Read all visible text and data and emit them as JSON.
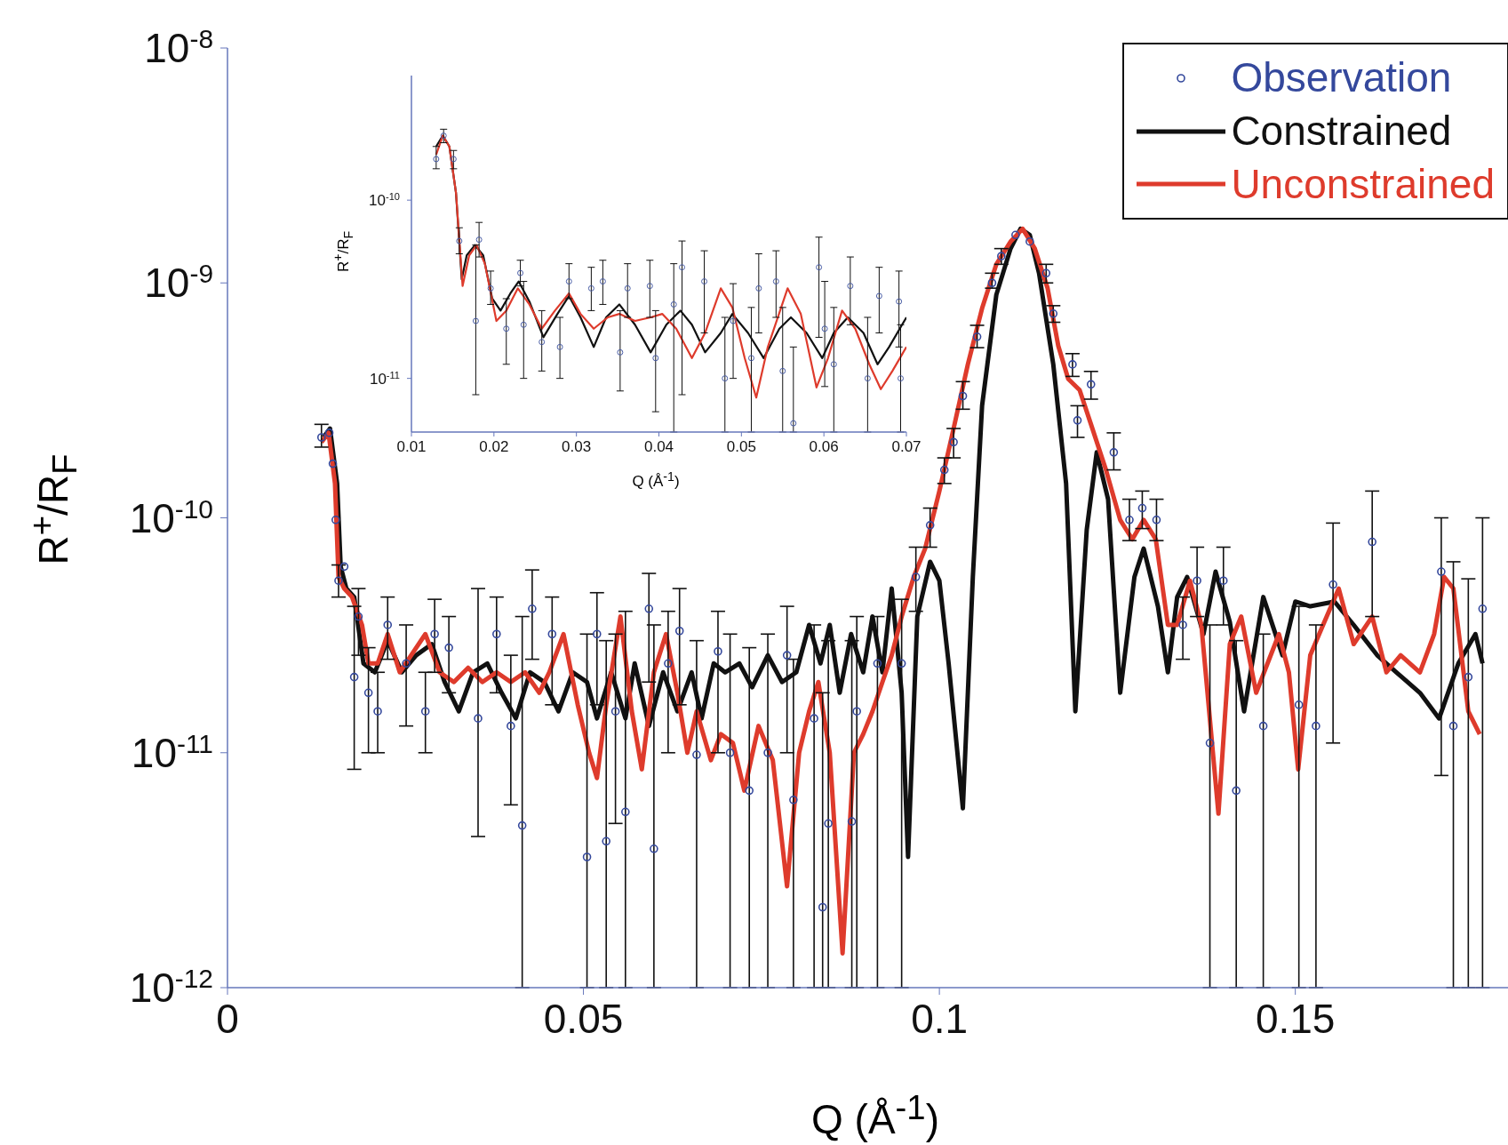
{
  "chart_data": [
    {
      "type": "line",
      "xlabel": "Q (Å$^{-1}$)",
      "ylabel": "R$^{+}$/R$_{F}$",
      "log": "y",
      "legend": "top right",
      "xlim": [
        0,
        0.18
      ],
      "xticks": [
        0,
        0.05,
        0.1,
        0.15
      ],
      "ylim": [
        1e-12,
        1e-08
      ],
      "yticks": [
        {
          "value": 1e-12,
          "label": "10$^{-12}$"
        },
        {
          "value": 1e-11,
          "label": "10$^{-11}$"
        },
        {
          "value": 1e-10,
          "label": "10$^{-10}$"
        },
        {
          "value": 1e-09,
          "label": "10$^{-9}$"
        },
        {
          "value": 1e-08,
          "label": "10$^{-8}$"
        }
      ],
      "series": [
        {
          "name": "Observation",
          "type": "scatter",
          "marker": "circle",
          "color": "#34489c",
          "x": [
            0.0132,
            0.0143,
            0.0148,
            0.0152,
            0.0156,
            0.0164,
            0.0178,
            0.0184,
            0.0198,
            0.0211,
            0.0225,
            0.0251,
            0.0278,
            0.0291,
            0.0311,
            0.0352,
            0.0378,
            0.0398,
            0.0414,
            0.0428,
            0.0456,
            0.0505,
            0.0519,
            0.0532,
            0.0545,
            0.0559,
            0.0592,
            0.0599,
            0.0619,
            0.0635,
            0.0659,
            0.0689,
            0.0706,
            0.0733,
            0.0759,
            0.0786,
            0.0795,
            0.0824,
            0.0836,
            0.0844,
            0.0877,
            0.0884,
            0.0913,
            0.0947,
            0.0967,
            0.0987,
            0.1007,
            0.102,
            0.1033,
            0.1053,
            0.1074,
            0.1087,
            0.1107,
            0.1127,
            0.115,
            0.116,
            0.1187,
            0.1194,
            0.1213,
            0.1245,
            0.1267,
            0.1285,
            0.1305,
            0.1342,
            0.1362,
            0.138,
            0.1399,
            0.1417,
            0.1455,
            0.1505,
            0.1529,
            0.1553,
            0.1608,
            0.1705,
            0.1722,
            0.1743,
            0.1763
          ],
          "values": [
            2.2e-10,
            2.3e-10,
            1.7e-10,
            9.8e-11,
            5.4e-11,
            6.2e-11,
            2.1e-11,
            3.8e-11,
            1.8e-11,
            1.5e-11,
            3.5e-11,
            2.4e-11,
            1.5e-11,
            3.2e-11,
            2.8e-11,
            1.4e-11,
            3.2e-11,
            1.3e-11,
            4.9e-12,
            4.1e-11,
            3.2e-11,
            3.6e-12,
            3.2e-11,
            4.2e-12,
            1.5e-11,
            5.6e-12,
            4.1e-11,
            3.9e-12,
            2.4e-11,
            3.3e-11,
            9.8e-12,
            2.7e-11,
            1e-11,
            6.9e-12,
            1e-11,
            2.6e-11,
            6.3e-12,
            1.4e-11,
            2.2e-12,
            5e-12,
            5.1e-12,
            1.5e-11,
            2.4e-11,
            2.4e-11,
            5.6e-11,
            9.3e-11,
            1.6e-10,
            2.1e-10,
            3.3e-10,
            5.9e-10,
            1e-09,
            1.3e-09,
            1.6e-09,
            1.5e-09,
            1.1e-09,
            7.4e-10,
            4.5e-10,
            2.6e-10,
            3.7e-10,
            1.9e-10,
            9.8e-11,
            1.1e-10,
            9.8e-11,
            3.5e-11,
            5.4e-11,
            1.1e-11,
            5.4e-11,
            6.9e-12,
            1.3e-11,
            1.6e-11,
            1.3e-11,
            5.2e-11,
            7.9e-11,
            5.9e-11,
            1.3e-11,
            2.1e-11,
            4.1e-11
          ],
          "errors": [
            [
              2e-10,
              2.5e-10
            ],
            null,
            null,
            null,
            [
              4.6e-11,
              6.3e-11
            ],
            null,
            [
              8.5e-12,
              4.2e-11
            ],
            [
              2.6e-11,
              5e-11
            ],
            [
              1e-11,
              2.8e-11
            ],
            [
              1e-11,
              2.2e-11
            ],
            [
              2.5e-11,
              4.6e-11
            ],
            [
              1.3e-11,
              3.5e-11
            ],
            [
              1e-11,
              2.2e-11
            ],
            [
              2.2e-11,
              4.5e-11
            ],
            [
              1.8e-11,
              3.8e-11
            ],
            [
              4.4e-12,
              5e-11
            ],
            [
              1.8e-11,
              4.6e-11
            ],
            [
              6e-12,
              2.6e-11
            ],
            [
              1e-12,
              3.8e-11
            ],
            [
              2.5e-11,
              6e-11
            ],
            [
              1.6e-11,
              4.6e-11
            ],
            [
              1e-12,
              3.2e-11
            ],
            [
              1.6e-11,
              4.8e-11
            ],
            [
              1e-12,
              3e-11
            ],
            [
              5e-12,
              3.2e-11
            ],
            [
              1e-12,
              4e-11
            ],
            [
              2e-11,
              5.8e-11
            ],
            [
              1e-12,
              3.5e-11
            ],
            [
              1e-11,
              4e-11
            ],
            [
              1.6e-11,
              5e-11
            ],
            [
              1e-12,
              3e-11
            ],
            [
              1e-11,
              4e-11
            ],
            [
              1e-12,
              3.2e-11
            ],
            [
              1e-12,
              2.8e-11
            ],
            [
              1e-12,
              3.2e-11
            ],
            [
              1e-11,
              4.2e-11
            ],
            [
              1e-12,
              2.5e-11
            ],
            [
              1e-12,
              3.5e-11
            ],
            [
              1e-12,
              1.8e-11
            ],
            [
              1e-12,
              3e-11
            ],
            [
              1e-12,
              3e-11
            ],
            [
              1e-12,
              3.8e-11
            ],
            [
              1e-12,
              3.8e-11
            ],
            [
              1e-12,
              4.5e-11
            ],
            [
              4e-11,
              7.5e-11
            ],
            [
              7.5e-11,
              1.1e-10
            ],
            [
              1.4e-10,
              1.8e-10
            ],
            [
              1.8e-10,
              2.4e-10
            ],
            [
              2.9e-10,
              3.8e-10
            ],
            [
              5.3e-10,
              6.6e-10
            ],
            [
              9.5e-10,
              1.1e-09
            ],
            [
              1.2e-09,
              1.4e-09
            ],
            null,
            null,
            [
              1e-09,
              1.2e-09
            ],
            [
              6.8e-10,
              8e-10
            ],
            [
              4e-10,
              5e-10
            ],
            [
              2.2e-10,
              3e-10
            ],
            [
              3.2e-10,
              4.2e-10
            ],
            [
              1.6e-10,
              2.3e-10
            ],
            [
              8e-11,
              1.2e-10
            ],
            [
              9e-11,
              1.3e-10
            ],
            [
              8e-11,
              1.2e-10
            ],
            [
              2.5e-11,
              4.6e-11
            ],
            [
              3.8e-11,
              7.5e-11
            ],
            [
              1e-12,
              3.5e-11
            ],
            [
              3.5e-11,
              7.5e-11
            ],
            [
              1e-12,
              3e-11
            ],
            [
              1e-12,
              3.2e-11
            ],
            [
              1e-12,
              4.2e-11
            ],
            [
              1e-12,
              3.5e-11
            ],
            [
              1.1e-11,
              9.5e-11
            ],
            [
              3.8e-11,
              1.3e-10
            ],
            [
              8e-12,
              1e-10
            ],
            [
              1e-12,
              6.5e-11
            ],
            [
              1e-12,
              5.5e-11
            ],
            [
              1e-12,
              1e-10
            ]
          ]
        },
        {
          "name": "Constrained",
          "type": "line",
          "color": "#111111",
          "x": [
            0.0135,
            0.0144,
            0.0154,
            0.0159,
            0.0167,
            0.0178,
            0.0191,
            0.0207,
            0.0225,
            0.0245,
            0.0265,
            0.0287,
            0.0305,
            0.0325,
            0.0345,
            0.0365,
            0.0385,
            0.0405,
            0.0425,
            0.0445,
            0.0465,
            0.0485,
            0.0505,
            0.0519,
            0.0539,
            0.0559,
            0.0572,
            0.0592,
            0.0612,
            0.0632,
            0.0652,
            0.0666,
            0.0683,
            0.0699,
            0.0719,
            0.0737,
            0.0759,
            0.0779,
            0.0799,
            0.0817,
            0.0833,
            0.0846,
            0.086,
            0.0876,
            0.0893,
            0.0906,
            0.092,
            0.0933,
            0.0947,
            0.0956,
            0.0969,
            0.0987,
            0.1,
            0.1013,
            0.1033,
            0.1047,
            0.106,
            0.108,
            0.11,
            0.1114,
            0.1127,
            0.114,
            0.116,
            0.1178,
            0.1191,
            0.1207,
            0.1221,
            0.1237,
            0.1254,
            0.1274,
            0.1287,
            0.1307,
            0.1321,
            0.1334,
            0.1348,
            0.1371,
            0.1388,
            0.1408,
            0.1428,
            0.1455,
            0.1482,
            0.15,
            0.1521,
            0.1555,
            0.1582,
            0.1615,
            0.1642,
            0.1675,
            0.1702,
            0.1729,
            0.1753,
            0.1763
          ],
          "values": [
            2.2e-10,
            2.4e-10,
            1.4e-10,
            6.2e-11,
            5e-11,
            4.6e-11,
            2.4e-11,
            2.2e-11,
            3e-11,
            2.2e-11,
            2.6e-11,
            2.9e-11,
            2e-11,
            1.5e-11,
            2.2e-11,
            2.4e-11,
            1.8e-11,
            1.4e-11,
            2.2e-11,
            2e-11,
            1.5e-11,
            2.2e-11,
            2e-11,
            1.4e-11,
            2.2e-11,
            1.4e-11,
            2.4e-11,
            1.3e-11,
            2.2e-11,
            1.5e-11,
            2.2e-11,
            1.4e-11,
            2.4e-11,
            2.2e-11,
            2.4e-11,
            1.9e-11,
            2.6e-11,
            2e-11,
            2.2e-11,
            3.5e-11,
            2.4e-11,
            3.5e-11,
            1.8e-11,
            3.2e-11,
            2.2e-11,
            3.8e-11,
            2.2e-11,
            5e-11,
            1.8e-11,
            3.6e-12,
            3.8e-11,
            6.5e-11,
            5.4e-11,
            2.4e-11,
            5.8e-12,
            5.6e-11,
            3e-10,
            8.9e-10,
            1.4e-09,
            1.7e-09,
            1.6e-09,
            1.1e-09,
            4.5e-10,
            1.4e-10,
            1.5e-11,
            8.9e-11,
            1.9e-10,
            1.2e-10,
            1.8e-11,
            5.6e-11,
            7.4e-11,
            4.2e-11,
            2.2e-11,
            4.6e-11,
            5.6e-11,
            3.2e-11,
            5.9e-11,
            3.6e-11,
            1.5e-11,
            4.6e-11,
            2.6e-11,
            4.4e-11,
            4.2e-11,
            4.4e-11,
            3.5e-11,
            2.6e-11,
            2.2e-11,
            1.8e-11,
            1.4e-11,
            2.4e-11,
            3.2e-11,
            2.4e-11
          ]
        },
        {
          "name": "Unconstrained",
          "type": "line",
          "color": "#de3b2c",
          "x": [
            0.0132,
            0.0142,
            0.0151,
            0.0156,
            0.0164,
            0.0175,
            0.0189,
            0.0198,
            0.0211,
            0.0225,
            0.0242,
            0.0258,
            0.0278,
            0.0298,
            0.0318,
            0.0338,
            0.0358,
            0.0378,
            0.0398,
            0.0418,
            0.0438,
            0.0452,
            0.0472,
            0.0492,
            0.0508,
            0.0519,
            0.0532,
            0.0552,
            0.0568,
            0.0582,
            0.0599,
            0.0616,
            0.0632,
            0.0646,
            0.0659,
            0.0679,
            0.0693,
            0.071,
            0.0726,
            0.0746,
            0.0766,
            0.0786,
            0.0803,
            0.0817,
            0.083,
            0.0846,
            0.0864,
            0.088,
            0.0893,
            0.0906,
            0.092,
            0.0933,
            0.0947,
            0.0964,
            0.098,
            0.1,
            0.102,
            0.104,
            0.106,
            0.108,
            0.11,
            0.1117,
            0.1134,
            0.1152,
            0.1167,
            0.1181,
            0.1197,
            0.1213,
            0.1234,
            0.1254,
            0.1271,
            0.1287,
            0.1304,
            0.1321,
            0.1334,
            0.1352,
            0.1368,
            0.1392,
            0.1408,
            0.1424,
            0.1445,
            0.1461,
            0.1477,
            0.1491,
            0.1504,
            0.1521,
            0.1539,
            0.1561,
            0.1582,
            0.1608,
            0.1628,
            0.1648,
            0.1675,
            0.1695,
            0.1709,
            0.1722,
            0.1743,
            0.1759
          ],
          "values": [
            2.1e-10,
            2.3e-10,
            1.4e-10,
            5.6e-11,
            5e-11,
            4.6e-11,
            3.5e-11,
            2.4e-11,
            2.4e-11,
            3.2e-11,
            2.2e-11,
            2.6e-11,
            3.2e-11,
            2.2e-11,
            2e-11,
            2.3e-11,
            2e-11,
            2.2e-11,
            2e-11,
            2.2e-11,
            1.8e-11,
            2.2e-11,
            3.2e-11,
            1.6e-11,
            1e-11,
            7.8e-12,
            1.6e-11,
            3.8e-11,
            1.5e-11,
            8.5e-12,
            2.2e-11,
            3.2e-11,
            1.8e-11,
            1e-11,
            1.5e-11,
            9.3e-12,
            1.2e-11,
            1.1e-11,
            6.9e-12,
            1.3e-11,
            9.3e-12,
            2.7e-12,
            1e-11,
            1.5e-11,
            2e-11,
            1e-11,
            1.4e-12,
            1e-11,
            1.2e-11,
            1.5e-11,
            2e-11,
            2.6e-11,
            3.8e-11,
            5.6e-11,
            7.4e-11,
            1.3e-10,
            2.4e-10,
            4.5e-10,
            7.8e-10,
            1.2e-09,
            1.5e-09,
            1.7e-09,
            1.4e-09,
            9.5e-10,
            5.4e-10,
            3.9e-10,
            3.5e-10,
            2.5e-10,
            1.6e-10,
            9.8e-11,
            8.1e-11,
            9.8e-11,
            8.1e-11,
            3.5e-11,
            3.5e-11,
            5.4e-11,
            3.5e-11,
            5.5e-12,
            2.9e-11,
            3.8e-11,
            1.8e-11,
            2.4e-11,
            3.2e-11,
            2.2e-11,
            8.5e-12,
            2.6e-11,
            3.5e-11,
            5e-11,
            2.9e-11,
            3.8e-11,
            2.2e-11,
            2.6e-11,
            2.2e-11,
            3.2e-11,
            5.6e-11,
            5e-11,
            1.5e-11,
            1.2e-11
          ]
        }
      ]
    },
    {
      "type": "line",
      "xlabel": "Q (Å$^{-1}$)",
      "ylabel": "R$^{+}$/R$_{F}$",
      "log": "y",
      "xlim": [
        0.01,
        0.07
      ],
      "xticks": [
        0.01,
        0.02,
        0.03,
        0.04,
        0.05,
        0.06,
        0.07
      ],
      "ylim": [
        5e-12,
        5e-10
      ],
      "yticks": [
        {
          "value": 1e-11,
          "label": "10$^{-11}$"
        },
        {
          "value": 1e-10,
          "label": "10$^{-10}$"
        }
      ],
      "series": [
        {
          "type": "scatter",
          "marker": "circle",
          "color": "#4a5ea6",
          "x": [
            0.013,
            0.0139,
            0.0151,
            0.0158,
            0.0178,
            0.0182,
            0.0196,
            0.0215,
            0.0232,
            0.0236,
            0.0258,
            0.028,
            0.0291,
            0.0318,
            0.0332,
            0.0353,
            0.0362,
            0.0389,
            0.0396,
            0.0418,
            0.0428,
            0.0455,
            0.048,
            0.049,
            0.0512,
            0.0521,
            0.0542,
            0.055,
            0.0563,
            0.0594,
            0.0601,
            0.0612,
            0.0632,
            0.0653,
            0.0667,
            0.0691,
            0.0693
          ],
          "values": [
            1.7e-10,
            2.3e-10,
            1.7e-10,
            5.9e-11,
            2.1e-11,
            6e-11,
            3.2e-11,
            1.9e-11,
            3.9e-11,
            2e-11,
            1.6e-11,
            1.5e-11,
            3.5e-11,
            3.2e-11,
            3.5e-11,
            1.4e-11,
            3.2e-11,
            3.3e-11,
            1.3e-11,
            2.6e-11,
            4.2e-11,
            3.5e-11,
            1e-11,
            2.1e-11,
            1.3e-11,
            3.2e-11,
            3.5e-11,
            1.1e-11,
            5.6e-12,
            4.2e-11,
            1.9e-11,
            1.2e-11,
            3.3e-11,
            1e-11,
            2.9e-11,
            2.7e-11,
            1e-11
          ],
          "errors": [
            [
              1.5e-10,
              2e-10
            ],
            [
              2.1e-10,
              2.5e-10
            ],
            [
              1.5e-10,
              1.9e-10
            ],
            [
              5e-11,
              7e-11
            ],
            [
              8.1e-12,
              5.6e-11
            ],
            [
              4.8e-11,
              7.5e-11
            ],
            [
              2.6e-11,
              4e-11
            ],
            [
              1.2e-11,
              2.8e-11
            ],
            [
              3.3e-11,
              4.6e-11
            ],
            [
              1e-11,
              3.5e-11
            ],
            [
              1.1e-11,
              2.4e-11
            ],
            [
              1e-11,
              2.2e-11
            ],
            [
              2.8e-11,
              4.4e-11
            ],
            [
              2.4e-11,
              4.2e-11
            ],
            [
              2.6e-11,
              4.6e-11
            ],
            [
              8.5e-12,
              2.4e-11
            ],
            [
              2.2e-11,
              4.4e-11
            ],
            [
              2.2e-11,
              4.6e-11
            ],
            [
              6.5e-12,
              2.4e-11
            ],
            [
              5e-12,
              4.4e-11
            ],
            [
              8.1e-12,
              5.9e-11
            ],
            [
              1.8e-11,
              5.2e-11
            ],
            [
              5e-12,
              2.2e-11
            ],
            [
              1e-11,
              3.4e-11
            ],
            [
              5e-12,
              2.5e-11
            ],
            [
              1.8e-11,
              5e-11
            ],
            [
              2.2e-11,
              5.2e-11
            ],
            [
              5e-12,
              2.5e-11
            ],
            [
              5e-12,
              1.5e-11
            ],
            [
              1.7e-11,
              6.2e-11
            ],
            [
              9e-12,
              3.5e-11
            ],
            [
              5e-12,
              2.5e-11
            ],
            [
              2e-11,
              4.8e-11
            ],
            [
              5e-12,
              2.2e-11
            ],
            [
              1.8e-11,
              4.2e-11
            ],
            [
              1.5e-11,
              4e-11
            ],
            [
              5e-12,
              2e-11
            ]
          ]
        },
        {
          "type": "line",
          "color": "#111111",
          "x": [
            0.013,
            0.0138,
            0.0146,
            0.0154,
            0.0161,
            0.0167,
            0.0177,
            0.0187,
            0.0198,
            0.0208,
            0.022,
            0.023,
            0.0243,
            0.026,
            0.0277,
            0.0291,
            0.0305,
            0.0321,
            0.0336,
            0.0352,
            0.0371,
            0.039,
            0.0409,
            0.0426,
            0.044,
            0.0456,
            0.0475,
            0.0489,
            0.0508,
            0.0527,
            0.0546,
            0.056,
            0.0579,
            0.0598,
            0.0612,
            0.0629,
            0.0648,
            0.0665,
            0.0679,
            0.07
          ],
          "values": [
            2e-10,
            2.3e-10,
            2e-10,
            1.1e-10,
            3.6e-11,
            4.9e-11,
            5.6e-11,
            4.9e-11,
            2.8e-11,
            2.4e-11,
            3e-11,
            3.5e-11,
            2.7e-11,
            1.7e-11,
            2.3e-11,
            2.9e-11,
            2.2e-11,
            1.5e-11,
            2.2e-11,
            2.6e-11,
            2e-11,
            1.4e-11,
            2e-11,
            2.4e-11,
            2e-11,
            1.4e-11,
            1.8e-11,
            2.3e-11,
            1.8e-11,
            1.3e-11,
            1.9e-11,
            2.2e-11,
            1.8e-11,
            1.3e-11,
            1.8e-11,
            2.2e-11,
            1.8e-11,
            1.2e-11,
            1.5e-11,
            2.2e-11
          ]
        },
        {
          "type": "line",
          "color": "#de3b2c",
          "x": [
            0.013,
            0.0138,
            0.0146,
            0.0154,
            0.0162,
            0.017,
            0.0179,
            0.0189,
            0.0203,
            0.0215,
            0.0229,
            0.0243,
            0.0258,
            0.0274,
            0.0291,
            0.0305,
            0.0321,
            0.0338,
            0.0352,
            0.0371,
            0.039,
            0.0404,
            0.0421,
            0.044,
            0.0456,
            0.0475,
            0.0489,
            0.0504,
            0.0518,
            0.0532,
            0.0556,
            0.0572,
            0.0591,
            0.0605,
            0.0622,
            0.0638,
            0.0655,
            0.0669,
            0.0683,
            0.07
          ],
          "values": [
            1.8e-10,
            2.3e-10,
            2e-10,
            1.1e-10,
            3.3e-11,
            4.9e-11,
            5.6e-11,
            4.4e-11,
            2.1e-11,
            2.4e-11,
            3.2e-11,
            2.6e-11,
            1.9e-11,
            2.4e-11,
            3e-11,
            2.3e-11,
            1.9e-11,
            2.2e-11,
            2.3e-11,
            2.1e-11,
            2.2e-11,
            2.3e-11,
            1.9e-11,
            1.3e-11,
            1.8e-11,
            3.2e-11,
            2.5e-11,
            1.3e-11,
            7.8e-12,
            1.5e-11,
            3.2e-11,
            2.3e-11,
            8.9e-12,
            1.3e-11,
            2.4e-11,
            1.9e-11,
            1.2e-11,
            8.7e-12,
            1.1e-11,
            1.5e-11
          ]
        }
      ]
    }
  ]
}
